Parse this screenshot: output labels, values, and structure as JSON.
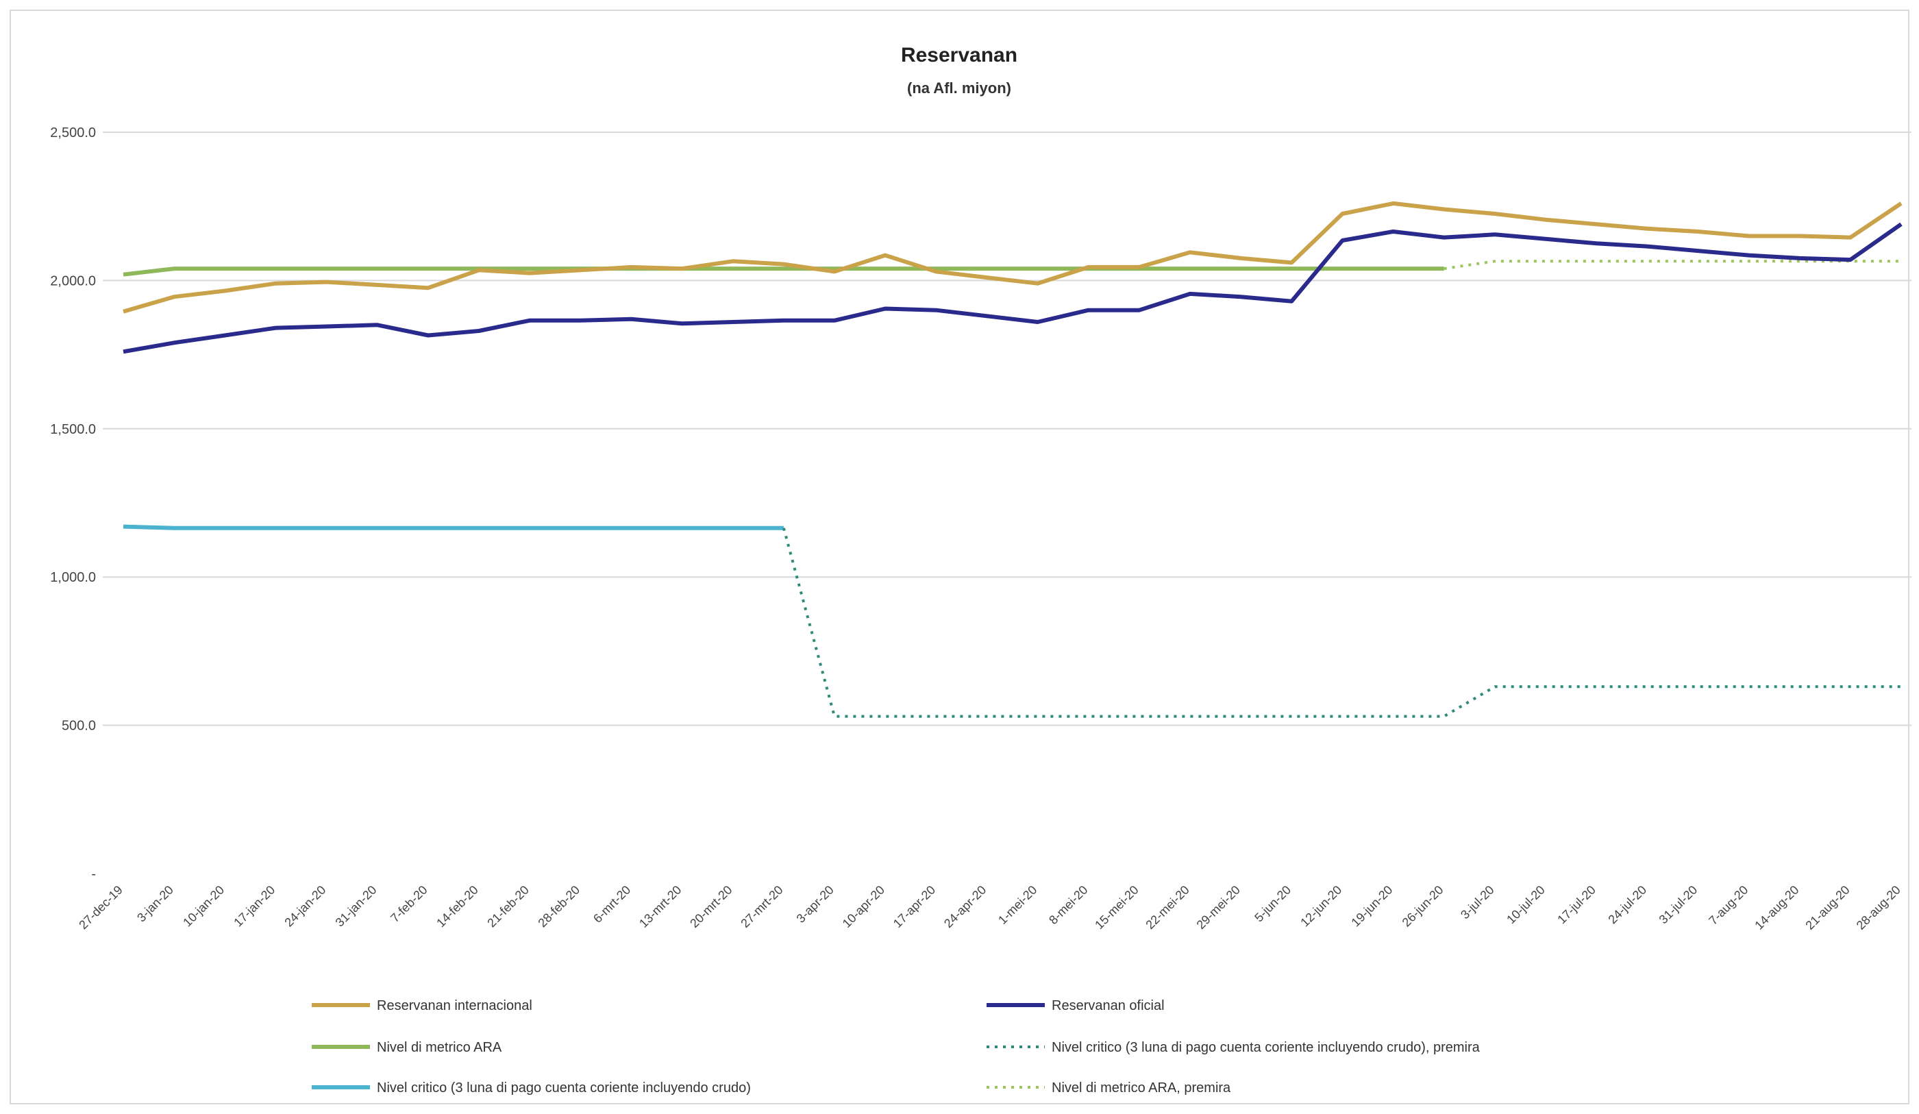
{
  "chart_data": {
    "type": "line",
    "title": "Reservanan",
    "subtitle": "(na Afl. miyon)",
    "xlabel": "",
    "ylabel": "",
    "ylim": [
      0,
      2500
    ],
    "yticks": [
      "-",
      "500.0",
      "1,000.0",
      "1,500.0",
      "2,000.0",
      "2,500.0"
    ],
    "ytick_values": [
      0,
      500,
      1000,
      1500,
      2000,
      2500
    ],
    "grid": true,
    "legend_position": "bottom",
    "categories": [
      "27-dec-19",
      "3-jan-20",
      "10-jan-20",
      "17-jan-20",
      "24-jan-20",
      "31-jan-20",
      "7-feb-20",
      "14-feb-20",
      "21-feb-20",
      "28-feb-20",
      "6-mrt-20",
      "13-mrt-20",
      "20-mrt-20",
      "27-mrt-20",
      "3-apr-20",
      "10-apr-20",
      "17-apr-20",
      "24-apr-20",
      "1-mei-20",
      "8-mei-20",
      "15-mei-20",
      "22-mei-20",
      "29-mei-20",
      "5-jun-20",
      "12-jun-20",
      "19-jun-20",
      "26-jun-20",
      "3-jul-20",
      "10-jul-20",
      "17-jul-20",
      "24-jul-20",
      "31-jul-20",
      "7-aug-20",
      "14-aug-20",
      "21-aug-20",
      "28-aug-20"
    ],
    "series": [
      {
        "name": "Reservanan internacional",
        "color": "#c9a24a",
        "style": "solid",
        "values": [
          1895,
          1945,
          1965,
          1990,
          1995,
          1985,
          1975,
          2035,
          2025,
          2035,
          2045,
          2040,
          2065,
          2055,
          2030,
          2085,
          2030,
          2010,
          1990,
          2045,
          2045,
          2095,
          2075,
          2060,
          2225,
          2260,
          2240,
          2225,
          2205,
          2190,
          2175,
          2165,
          2150,
          2150,
          2145,
          2260
        ]
      },
      {
        "name": "Reservanan oficial",
        "color": "#2a2a8c",
        "style": "solid",
        "values": [
          1760,
          1790,
          1815,
          1840,
          1845,
          1850,
          1815,
          1830,
          1865,
          1865,
          1870,
          1855,
          1860,
          1865,
          1865,
          1905,
          1900,
          1880,
          1860,
          1900,
          1900,
          1955,
          1945,
          1930,
          2135,
          2165,
          2145,
          2155,
          2140,
          2125,
          2115,
          2100,
          2085,
          2075,
          2070,
          2190
        ]
      },
      {
        "name": "Nivel di metrico ARA",
        "color": "#8fb85a",
        "style": "solid",
        "values": [
          2020,
          2040,
          2040,
          2040,
          2040,
          2040,
          2040,
          2040,
          2040,
          2040,
          2040,
          2040,
          2040,
          2040,
          2040,
          2040,
          2040,
          2040,
          2040,
          2040,
          2040,
          2040,
          2040,
          2040,
          2040,
          2040,
          2040,
          null,
          null,
          null,
          null,
          null,
          null,
          null,
          null,
          null
        ]
      },
      {
        "name": "Nivel critico (3 luna di pago cuenta coriente incluyendo crudo), premira",
        "color": "#2e8b7a",
        "style": "dotted",
        "values": [
          null,
          null,
          null,
          null,
          null,
          null,
          null,
          null,
          null,
          null,
          null,
          null,
          null,
          1165,
          530,
          530,
          530,
          530,
          530,
          530,
          530,
          530,
          530,
          530,
          530,
          530,
          530,
          630,
          630,
          630,
          630,
          630,
          630,
          630,
          630,
          630
        ]
      },
      {
        "name": "Nivel critico (3 luna di pago cuenta coriente incluyendo crudo)",
        "color": "#4bb3cf",
        "style": "solid",
        "values": [
          1170,
          1165,
          1165,
          1165,
          1165,
          1165,
          1165,
          1165,
          1165,
          1165,
          1165,
          1165,
          1165,
          1165,
          null,
          null,
          null,
          null,
          null,
          null,
          null,
          null,
          null,
          null,
          null,
          null,
          null,
          null,
          null,
          null,
          null,
          null,
          null,
          null,
          null,
          null
        ]
      },
      {
        "name": "Nivel di metrico ARA, premira",
        "color": "#9cc65c",
        "style": "dotted",
        "values": [
          null,
          null,
          null,
          null,
          null,
          null,
          null,
          null,
          null,
          null,
          null,
          null,
          null,
          null,
          null,
          null,
          null,
          null,
          null,
          null,
          null,
          null,
          null,
          null,
          null,
          null,
          2040,
          2065,
          2065,
          2065,
          2065,
          2065,
          2065,
          2065,
          2065,
          2065
        ]
      }
    ]
  }
}
